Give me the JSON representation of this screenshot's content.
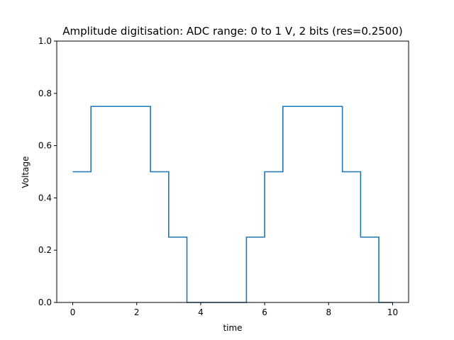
{
  "chart_data": {
    "type": "line",
    "title": "Amplitude digitisation: ADC range: 0 to 1 V, 2 bits (res=0.2500)",
    "xlabel": "time",
    "ylabel": "Voltage",
    "xlim": [
      -0.5,
      10.5
    ],
    "ylim": [
      0,
      1.0
    ],
    "xticks": [
      0,
      2,
      4,
      6,
      8,
      10
    ],
    "xtick_labels": [
      "0",
      "2",
      "4",
      "6",
      "8",
      "10"
    ],
    "yticks": [
      0.0,
      0.2,
      0.4,
      0.6,
      0.8,
      1.0
    ],
    "ytick_labels": [
      "0.0",
      "0.2",
      "0.4",
      "0.6",
      "0.8",
      "1.0"
    ],
    "grid": false,
    "series": [
      {
        "color": "#1f77b4",
        "step": true,
        "x": [
          0,
          0.57,
          2.43,
          3.0,
          3.57,
          5.43,
          6.0,
          6.57,
          8.43,
          9.0,
          9.57,
          10.0
        ],
        "y": [
          0.5,
          0.75,
          0.5,
          0.25,
          0.0,
          0.25,
          0.5,
          0.75,
          0.5,
          0.25,
          0.0,
          0.0
        ]
      }
    ]
  }
}
